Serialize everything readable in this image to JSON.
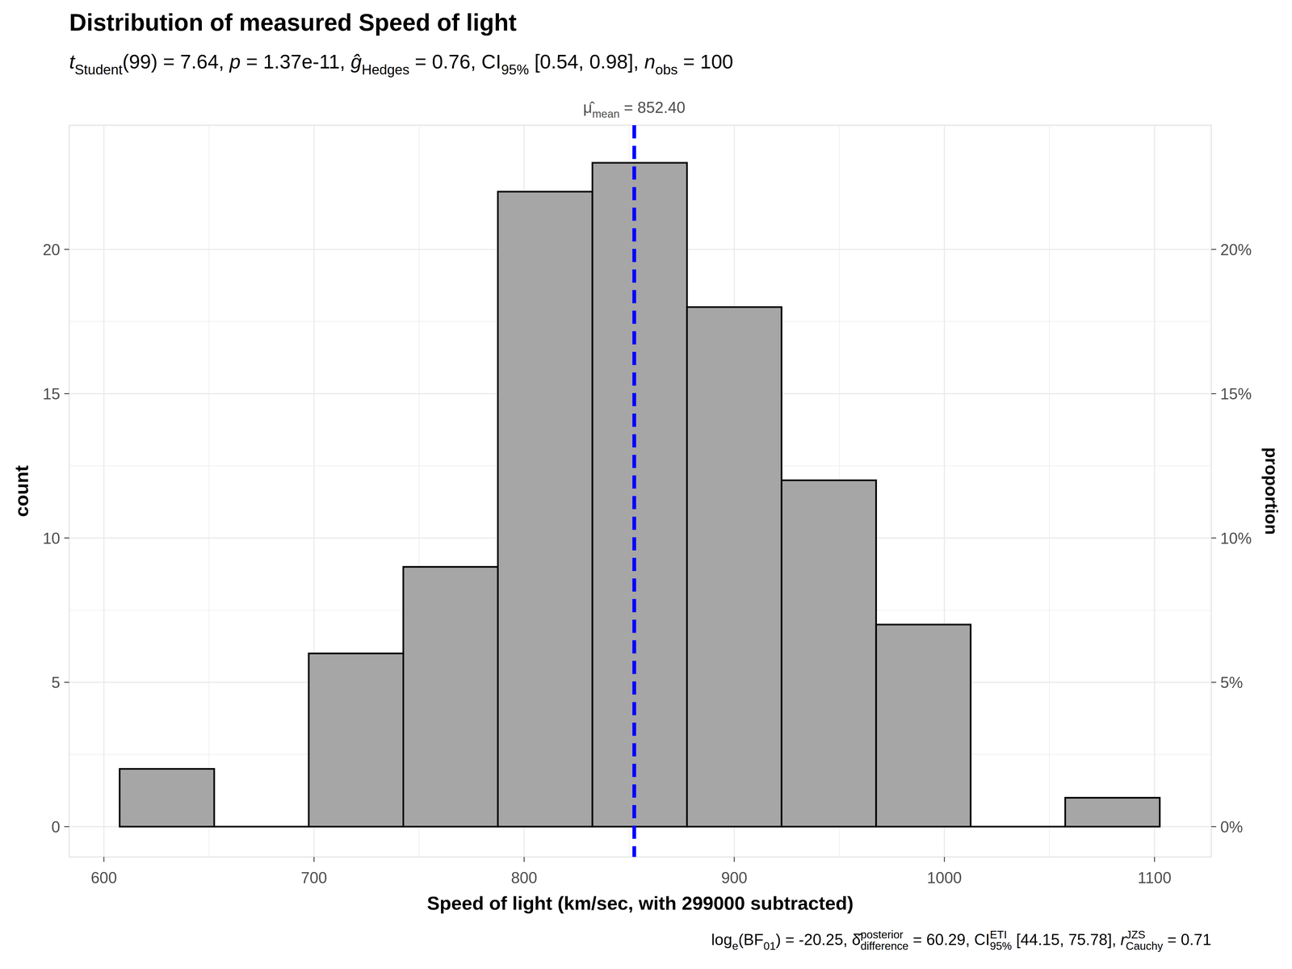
{
  "chart_data": {
    "type": "histogram",
    "title": "Distribution of measured Speed of light",
    "subtitle": [
      {
        "i": "t"
      },
      {
        "sub": "Student"
      },
      {
        "t": "(99) = 7.64, "
      },
      {
        "i": "p"
      },
      {
        "t": " = 1.37e-11, "
      },
      {
        "i": "ĝ"
      },
      {
        "sub": "Hedges"
      },
      {
        "t": " = 0.76, CI"
      },
      {
        "sub": "95%"
      },
      {
        "t": " [0.54, 0.98], "
      },
      {
        "i": "n"
      },
      {
        "sub": "obs"
      },
      {
        "t": " = 100"
      }
    ],
    "caption": [
      {
        "t": "log"
      },
      {
        "sub": "e"
      },
      {
        "t": "(BF"
      },
      {
        "sub": "01"
      },
      {
        "t": ") = -20.25, "
      },
      {
        "t": "δ̂"
      },
      {
        "sup": "posterior"
      },
      {
        "sub": "difference"
      },
      {
        "t": " = 60.29, CI"
      },
      {
        "sup": "ETI"
      },
      {
        "sub": "95%"
      },
      {
        "t": " [44.15, 75.78], "
      },
      {
        "i": "r"
      },
      {
        "sup": "JZS"
      },
      {
        "sub": "Cauchy"
      },
      {
        "t": " = 0.71"
      }
    ],
    "x_label": "Speed of light (km/sec, with 299000 subtracted)",
    "y_label": "count",
    "y2_label": "proportion",
    "bins": [
      607.5,
      652.5,
      697.5,
      742.5,
      787.5,
      832.5,
      877.5,
      922.5,
      967.5,
      1012.5,
      1057.5,
      1102.5
    ],
    "values": [
      2,
      0,
      6,
      9,
      22,
      23,
      18,
      12,
      7,
      0,
      1
    ],
    "color": "#a6a6a6",
    "annotations": [
      {
        "type": "vline",
        "x": 852.4,
        "color": "#0000ff",
        "line_style": "dashed",
        "label": [
          {
            "t": "μ̂"
          },
          {
            "sub": "mean"
          },
          {
            "t": " = 852.40"
          }
        ]
      }
    ],
    "xlim": [
      583.5,
      1127
    ],
    "xticks": [
      600,
      700,
      800,
      900,
      1000,
      1100
    ],
    "ylim": [
      -1.05,
      24.3
    ],
    "yticks": [
      0,
      5,
      10,
      15,
      20
    ],
    "y2lim": [
      -0.0105,
      0.243
    ],
    "y2ticks": [
      {
        "value": 0,
        "label": "0%"
      },
      {
        "value": 0.05,
        "label": "5%"
      },
      {
        "value": 0.1,
        "label": "10%"
      },
      {
        "value": 0.15,
        "label": "15%"
      },
      {
        "value": 0.2,
        "label": "20%"
      }
    ],
    "grid": true
  }
}
